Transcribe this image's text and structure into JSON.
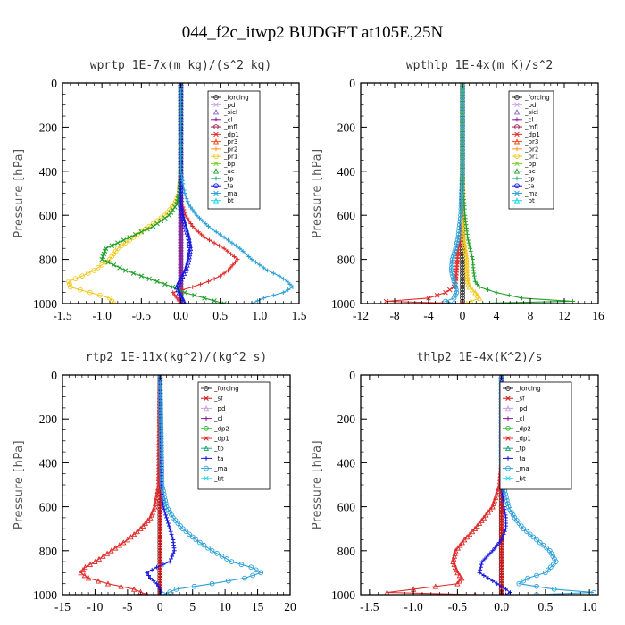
{
  "figure": {
    "title": "044_f2c_itwp2  BUDGET at105E,25N"
  },
  "colors": {
    "_forcing": "#202020",
    "_pd": "#c8a0e6",
    "_sicl": "#8a5fc4",
    "_cl": "#8a1d9c",
    "_mfl": "#a01a4a",
    "_dp1": "#e02a2a",
    "_pr3": "#ff4a1a",
    "_pr2": "#ff9a28",
    "_pr1": "#f2c81e",
    "_bp": "#7ed12a",
    "_ac": "#1fa028",
    "_tp": "#18a878",
    "_ta": "#1818e0",
    "_ma": "#2aa0d8",
    "_bt": "#18d8e0",
    "_sf": "#d01414",
    "_dp2": "#2ab82a"
  },
  "chart_data": [
    {
      "type": "line",
      "title": "wprtp   1E-7x(m kg)/(s^2 kg)",
      "ylabel": "Pressure [hPa]",
      "xlim": [
        -1.5,
        1.5
      ],
      "ylim": [
        1000,
        0
      ],
      "y_reversed": true,
      "xticks": [
        -1.5,
        -1.0,
        -0.5,
        0.0,
        0.5,
        1.0,
        1.5
      ],
      "xticklabels": [
        "-1.5",
        "-1.0",
        "-0.5",
        "0.0",
        "0.5",
        "1.0",
        "1.5"
      ],
      "yticks": [
        0,
        200,
        400,
        600,
        800,
        1000
      ],
      "legend": [
        "_forcing",
        "_pd",
        "_sicl",
        "_cl",
        "_mfl",
        "_dp1",
        "_pr3",
        "_pr2",
        "_pr1",
        "_bp",
        "_ac",
        "_tp",
        "_ta",
        "_ma",
        "_bt"
      ],
      "levels": [
        0,
        400,
        500,
        550,
        600,
        650,
        700,
        750,
        800,
        850,
        875,
        900,
        925,
        950,
        975,
        1000
      ],
      "series": [
        {
          "name": "_forcing",
          "x": [
            0,
            0,
            0,
            0,
            0,
            0,
            0,
            0,
            0,
            0,
            0,
            0,
            0,
            0,
            0,
            0
          ]
        },
        {
          "name": "_sicl",
          "x": [
            0,
            0,
            0,
            0,
            0,
            0,
            0,
            0,
            0,
            0,
            0,
            0,
            0,
            0,
            0,
            0
          ]
        },
        {
          "name": "_cl",
          "x": [
            0,
            0,
            0,
            0,
            0,
            0,
            0,
            0,
            0,
            0,
            0,
            0,
            0,
            0,
            0,
            0
          ]
        },
        {
          "name": "_dp1",
          "x": [
            0,
            0,
            0,
            0.02,
            0.06,
            0.15,
            0.3,
            0.55,
            0.72,
            0.6,
            0.5,
            0.35,
            0.15,
            -0.1,
            -0.05,
            0
          ]
        },
        {
          "name": "_pr1",
          "x": [
            0,
            0,
            -0.02,
            -0.08,
            -0.2,
            -0.4,
            -0.6,
            -0.8,
            -0.9,
            -1.1,
            -1.25,
            -1.42,
            -1.4,
            -1.15,
            -0.9,
            -0.85
          ]
        },
        {
          "name": "_ac",
          "x": [
            0,
            0,
            -0.02,
            -0.05,
            -0.15,
            -0.35,
            -0.65,
            -0.95,
            -1.0,
            -0.7,
            -0.5,
            -0.3,
            -0.1,
            0.05,
            0.3,
            0.55
          ]
        },
        {
          "name": "_ta",
          "x": [
            0,
            0,
            0,
            0,
            0.02,
            0.06,
            0.1,
            0.12,
            0.1,
            0.06,
            0.02,
            -0.02,
            -0.05,
            -0.02,
            0.02,
            0.05
          ]
        },
        {
          "name": "_ma",
          "x": [
            0,
            0,
            0.05,
            0.1,
            0.2,
            0.35,
            0.55,
            0.75,
            0.9,
            1.1,
            1.25,
            1.35,
            1.42,
            1.3,
            1.05,
            0.9
          ]
        }
      ]
    },
    {
      "type": "line",
      "title": "wpthlp   1E-4x(m K)/s^2",
      "ylabel": "Pressure [hPa]",
      "xlim": [
        -12,
        16
      ],
      "ylim": [
        1000,
        0
      ],
      "y_reversed": true,
      "xticks": [
        -12,
        -8,
        -4,
        0,
        4,
        8,
        12,
        16
      ],
      "xticklabels": [
        "-12",
        "-8",
        "-4",
        "0",
        "4",
        "8",
        "12",
        "16"
      ],
      "yticks": [
        0,
        200,
        400,
        600,
        800,
        1000
      ],
      "legend": [
        "_forcing",
        "_pd",
        "_sicl",
        "_cl",
        "_mfl",
        "_dp1",
        "_pr3",
        "_pr2",
        "_pr1",
        "_bp",
        "_ac",
        "_tp",
        "_ta",
        "_ma",
        "_bt"
      ],
      "levels": [
        0,
        400,
        500,
        600,
        700,
        750,
        800,
        850,
        900,
        925,
        950,
        975,
        990,
        1000
      ],
      "series": [
        {
          "name": "_forcing",
          "x": [
            0,
            0,
            0,
            0,
            0,
            0,
            0,
            0,
            0,
            0,
            0,
            0,
            0,
            0
          ]
        },
        {
          "name": "_dp1",
          "x": [
            0,
            0,
            0,
            0,
            -0.2,
            -0.5,
            -0.6,
            -0.7,
            -0.8,
            -1.0,
            -2.0,
            -4.0,
            -9.0,
            0
          ]
        },
        {
          "name": "_pr1",
          "x": [
            0,
            0,
            0,
            0,
            0.1,
            0.3,
            0.5,
            0.5,
            0.6,
            0.8,
            1.5,
            2.0,
            1.0,
            0.5
          ]
        },
        {
          "name": "_ac",
          "x": [
            0,
            0,
            0.1,
            0.3,
            0.6,
            0.9,
            1.2,
            1.3,
            1.5,
            2.0,
            4.0,
            7.0,
            13.0,
            0
          ]
        },
        {
          "name": "_ma",
          "x": [
            0,
            0,
            -0.1,
            -0.2,
            -0.5,
            -0.8,
            -1.2,
            -1.3,
            -1.0,
            -0.8,
            -0.7,
            -1.0,
            -2.0,
            -1.0
          ]
        }
      ]
    },
    {
      "type": "line",
      "title": "rtp2   1E-11x(kg^2)/(kg^2 s)",
      "ylabel": "Pressure [hPa]",
      "xlim": [
        -15,
        20
      ],
      "ylim": [
        1000,
        0
      ],
      "y_reversed": true,
      "xticks": [
        -15,
        -10,
        -5,
        0,
        5,
        10,
        15,
        20
      ],
      "xticklabels": [
        "-15",
        "-10",
        "-5",
        "0",
        "5",
        "10",
        "15",
        "20"
      ],
      "yticks": [
        0,
        200,
        400,
        600,
        800,
        1000
      ],
      "legend": [
        "_forcing",
        "_sf",
        "_pd",
        "_cl",
        "_dp2",
        "_dp1",
        "_tp",
        "_ta",
        "_ma",
        "_bt"
      ],
      "levels": [
        0,
        500,
        600,
        650,
        700,
        750,
        800,
        850,
        875,
        900,
        925,
        950,
        975,
        1000
      ],
      "series": [
        {
          "name": "_forcing",
          "x": [
            0,
            0,
            0,
            0,
            0,
            0,
            0,
            0,
            0,
            0,
            0,
            0,
            0,
            0
          ]
        },
        {
          "name": "_sf",
          "x": [
            0,
            0,
            0,
            0,
            0,
            0,
            0,
            0,
            0,
            0,
            0,
            0,
            0,
            0
          ]
        },
        {
          "name": "_dp1",
          "x": [
            0,
            -0.2,
            -0.8,
            -1.5,
            -3,
            -5,
            -7.5,
            -10,
            -11.5,
            -12.2,
            -11,
            -8,
            -4,
            -2
          ]
        },
        {
          "name": "_ta",
          "x": [
            0,
            0.2,
            0.5,
            1,
            1.5,
            2,
            2.2,
            1.5,
            -0.5,
            -2,
            -1.5,
            -0.5,
            0,
            0.2
          ]
        },
        {
          "name": "_ma",
          "x": [
            0,
            0.3,
            1,
            2,
            3.5,
            5.5,
            8,
            11,
            14,
            15.5,
            13,
            8,
            2.5,
            0.5
          ]
        }
      ]
    },
    {
      "type": "line",
      "title": "thlp2   1E-4x(K^2)/s",
      "ylabel": "Pressure [hPa]",
      "xlim": [
        -1.6,
        1.1
      ],
      "ylim": [
        1000,
        0
      ],
      "y_reversed": true,
      "xticks": [
        -1.5,
        -1.0,
        -0.5,
        0.0,
        0.5,
        1.0
      ],
      "xticklabels": [
        "-1.5",
        "-1.0",
        "-0.5",
        "0.0",
        "0.5",
        "1.0"
      ],
      "yticks": [
        0,
        200,
        400,
        600,
        800,
        1000
      ],
      "legend": [
        "_forcing",
        "_sf",
        "_pd",
        "_cl",
        "_dp2",
        "_dp1",
        "_tp",
        "_ta",
        "_ma",
        "_bt"
      ],
      "levels": [
        0,
        400,
        500,
        600,
        650,
        700,
        750,
        800,
        850,
        900,
        925,
        950,
        975,
        990,
        1000
      ],
      "series": [
        {
          "name": "_forcing",
          "x": [
            0,
            0,
            0,
            0,
            0,
            0,
            0,
            0,
            0,
            0,
            0,
            0,
            0,
            0,
            0
          ]
        },
        {
          "name": "_sf",
          "x": [
            0,
            0,
            0,
            0,
            0,
            0,
            0,
            0,
            0,
            0,
            0,
            0,
            0,
            0,
            0
          ]
        },
        {
          "name": "_dp1",
          "x": [
            0,
            0,
            -0.02,
            -0.1,
            -0.2,
            -0.3,
            -0.42,
            -0.52,
            -0.55,
            -0.5,
            -0.45,
            -0.5,
            -1.0,
            -1.3,
            -0.3
          ]
        },
        {
          "name": "_ta",
          "x": [
            0,
            0,
            0,
            0.03,
            0.05,
            0.05,
            0,
            -0.1,
            -0.22,
            -0.25,
            -0.15,
            -0.05,
            0.05,
            0.1,
            0.05
          ]
        },
        {
          "name": "_ma",
          "x": [
            0,
            0,
            0.02,
            0.08,
            0.15,
            0.25,
            0.4,
            0.55,
            0.62,
            0.5,
            0.3,
            0.2,
            0.6,
            1.05,
            0.4
          ]
        }
      ]
    }
  ]
}
